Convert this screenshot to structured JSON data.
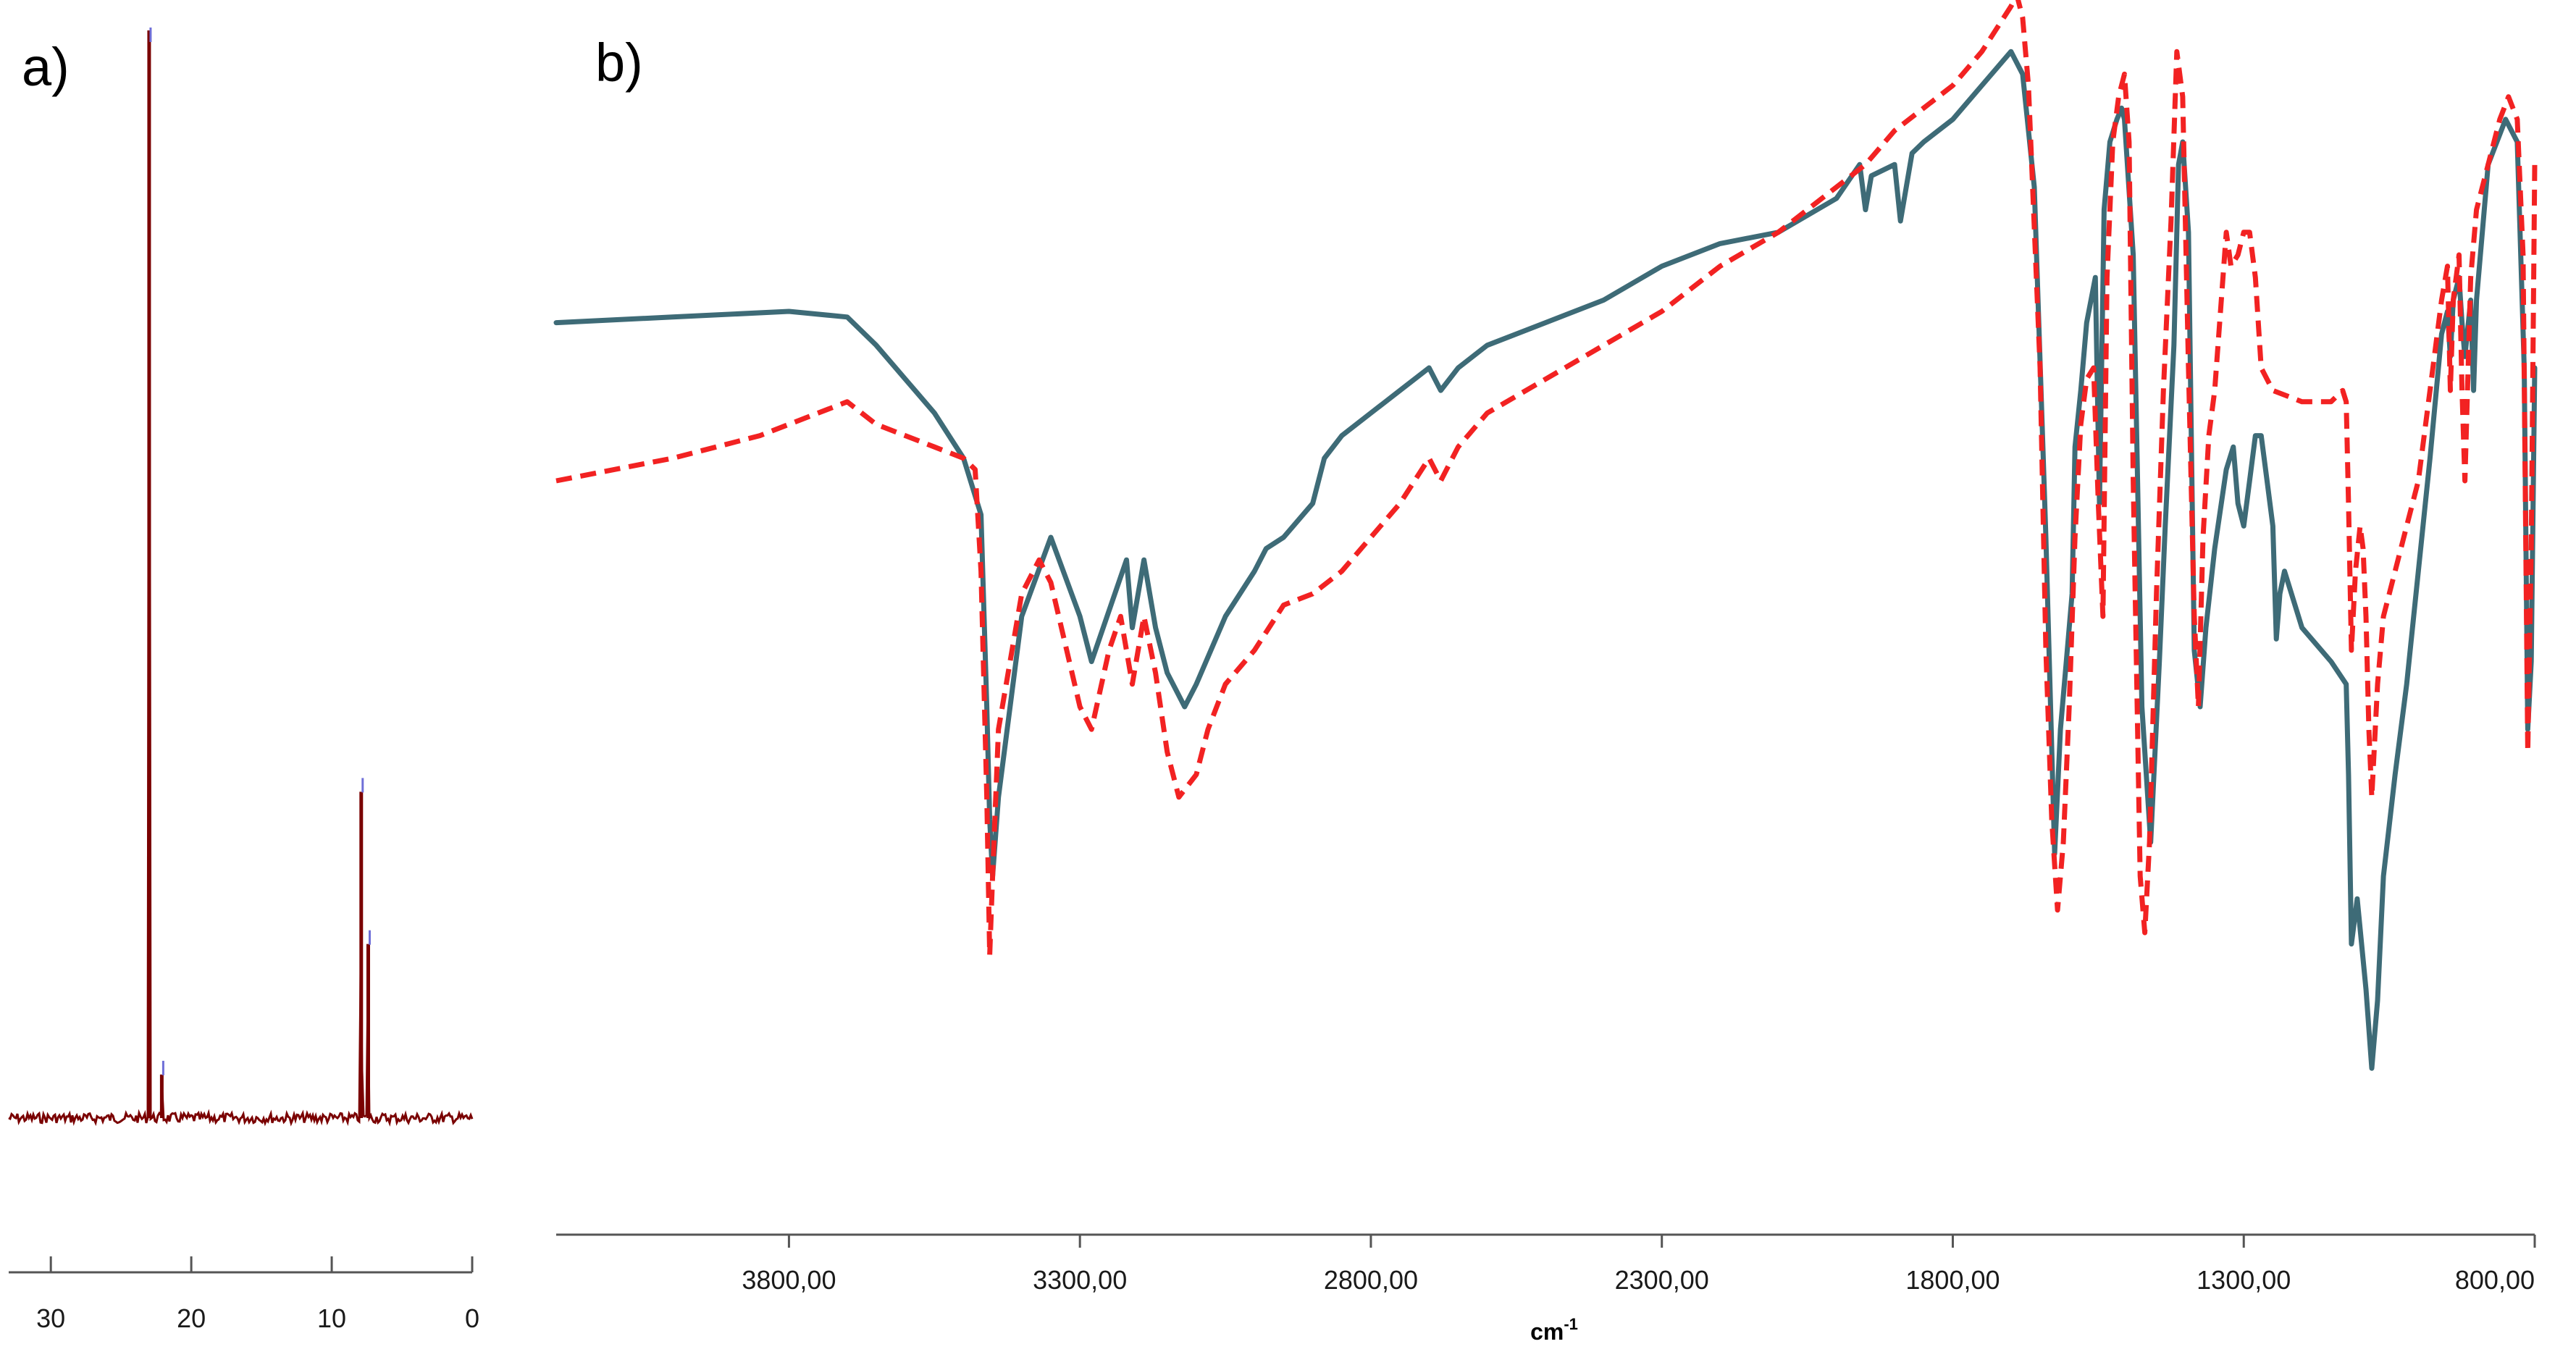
{
  "panel_a": {
    "label": "a)"
  },
  "panel_b": {
    "label": "b)"
  },
  "chart_data": [
    {
      "type": "line",
      "title": "",
      "xlabel": "",
      "ylabel": "",
      "xlim": [
        33,
        0
      ],
      "x_ticks": [
        30,
        20,
        10,
        0
      ],
      "x_tick_labels": [
        "30",
        "20",
        "10",
        "0"
      ],
      "grid": false,
      "series": [
        {
          "color": "#7a0000",
          "baseline": 0,
          "peaks": [
            {
              "x": 23.0,
              "height": 1.0
            },
            {
              "x": 22.1,
              "height": 0.04
            },
            {
              "x": 7.9,
              "height": 0.3
            },
            {
              "x": 7.4,
              "height": 0.16
            }
          ]
        }
      ],
      "peak_markers": [
        {
          "x": 23.0,
          "height": 1.0
        },
        {
          "x": 22.1,
          "height": 0.05
        },
        {
          "x": 7.9,
          "height": 0.31
        },
        {
          "x": 7.4,
          "height": 0.17
        }
      ],
      "marker_color": "#6f6fd8"
    },
    {
      "type": "line",
      "title": "",
      "xlabel": "cm",
      "xlabel_superscript": "-1",
      "ylabel": "",
      "xlim": [
        4200,
        800
      ],
      "ylim": [
        0,
        100
      ],
      "x_ticks": [
        3800,
        3300,
        2800,
        2300,
        1800,
        1300,
        800
      ],
      "x_tick_labels": [
        "3800,00",
        "3300,00",
        "2800,00",
        "2300,00",
        "1800,00",
        "1300,00",
        "800,00"
      ],
      "grid": false,
      "series": [
        {
          "color": "#3e6b77",
          "style": "solid",
          "points": [
            [
              4200,
              74
            ],
            [
              4000,
              74.5
            ],
            [
              3800,
              75
            ],
            [
              3700,
              74.5
            ],
            [
              3650,
              72
            ],
            [
              3600,
              69
            ],
            [
              3550,
              66
            ],
            [
              3500,
              62
            ],
            [
              3470,
              57
            ],
            [
              3460,
              40
            ],
            [
              3455,
              30
            ],
            [
              3450,
              25
            ],
            [
              3440,
              32
            ],
            [
              3400,
              48
            ],
            [
              3350,
              55
            ],
            [
              3300,
              48
            ],
            [
              3280,
              44
            ],
            [
              3240,
              50
            ],
            [
              3220,
              53
            ],
            [
              3210,
              47
            ],
            [
              3190,
              53
            ],
            [
              3170,
              47
            ],
            [
              3150,
              43
            ],
            [
              3120,
              40
            ],
            [
              3100,
              42
            ],
            [
              3050,
              48
            ],
            [
              3000,
              52
            ],
            [
              2980,
              54
            ],
            [
              2950,
              55
            ],
            [
              2900,
              58
            ],
            [
              2880,
              62
            ],
            [
              2850,
              64
            ],
            [
              2800,
              66
            ],
            [
              2750,
              68
            ],
            [
              2700,
              70
            ],
            [
              2680,
              68
            ],
            [
              2650,
              70
            ],
            [
              2600,
              72
            ],
            [
              2500,
              74
            ],
            [
              2400,
              76
            ],
            [
              2300,
              79
            ],
            [
              2200,
              81
            ],
            [
              2100,
              82
            ],
            [
              2000,
              85
            ],
            [
              1960,
              88
            ],
            [
              1950,
              84
            ],
            [
              1940,
              87
            ],
            [
              1900,
              88
            ],
            [
              1890,
              83
            ],
            [
              1870,
              89
            ],
            [
              1850,
              90
            ],
            [
              1800,
              92
            ],
            [
              1750,
              95
            ],
            [
              1700,
              98
            ],
            [
              1680,
              96
            ],
            [
              1660,
              86
            ],
            [
              1640,
              55
            ],
            [
              1625,
              27
            ],
            [
              1615,
              38
            ],
            [
              1605,
              44
            ],
            [
              1595,
              50
            ],
            [
              1590,
              63
            ],
            [
              1580,
              68
            ],
            [
              1570,
              74
            ],
            [
              1555,
              78
            ],
            [
              1548,
              58
            ],
            [
              1540,
              84
            ],
            [
              1530,
              90
            ],
            [
              1518,
              92
            ],
            [
              1510,
              93
            ],
            [
              1505,
              92
            ],
            [
              1490,
              80
            ],
            [
              1475,
              40
            ],
            [
              1460,
              28
            ],
            [
              1445,
              44
            ],
            [
              1435,
              56
            ],
            [
              1420,
              72
            ],
            [
              1412,
              88
            ],
            [
              1405,
              90
            ],
            [
              1395,
              82
            ],
            [
              1385,
              45
            ],
            [
              1375,
              40
            ],
            [
              1365,
              47
            ],
            [
              1350,
              54
            ],
            [
              1330,
              61
            ],
            [
              1318,
              63
            ],
            [
              1310,
              58
            ],
            [
              1300,
              56
            ],
            [
              1290,
              60
            ],
            [
              1280,
              64
            ],
            [
              1270,
              64
            ],
            [
              1260,
              60
            ],
            [
              1250,
              56
            ],
            [
              1244,
              46
            ],
            [
              1238,
              50
            ],
            [
              1230,
              52
            ],
            [
              1200,
              47
            ],
            [
              1150,
              44
            ],
            [
              1124,
              42
            ],
            [
              1120,
              34
            ],
            [
              1115,
              19
            ],
            [
              1105,
              23
            ],
            [
              1090,
              15
            ],
            [
              1080,
              8
            ],
            [
              1070,
              14
            ],
            [
              1060,
              25
            ],
            [
              1040,
              34
            ],
            [
              1020,
              42
            ],
            [
              1000,
              52
            ],
            [
              980,
              62
            ],
            [
              960,
              73
            ],
            [
              950,
              75
            ],
            [
              945,
              71
            ],
            [
              940,
              76
            ],
            [
              930,
              78
            ],
            [
              925,
              74
            ],
            [
              920,
              71
            ],
            [
              910,
              76
            ],
            [
              905,
              68
            ],
            [
              900,
              76
            ],
            [
              880,
              88
            ],
            [
              850,
              92
            ],
            [
              830,
              90
            ],
            [
              818,
              70
            ],
            [
              812,
              38
            ],
            [
              806,
              44
            ],
            [
              800,
              70
            ]
          ]
        },
        {
          "color": "#f22222",
          "style": "dashed",
          "points": [
            [
              4200,
              60
            ],
            [
              4000,
              62
            ],
            [
              3850,
              64
            ],
            [
              3800,
              65
            ],
            [
              3750,
              66
            ],
            [
              3700,
              67
            ],
            [
              3650,
              65
            ],
            [
              3600,
              64
            ],
            [
              3550,
              63
            ],
            [
              3500,
              62
            ],
            [
              3480,
              61
            ],
            [
              3470,
              52
            ],
            [
              3460,
              32
            ],
            [
              3455,
              18
            ],
            [
              3450,
              25
            ],
            [
              3440,
              38
            ],
            [
              3400,
              50
            ],
            [
              3370,
              53
            ],
            [
              3350,
              51
            ],
            [
              3300,
              40
            ],
            [
              3280,
              38
            ],
            [
              3250,
              45
            ],
            [
              3230,
              48
            ],
            [
              3210,
              42
            ],
            [
              3190,
              48
            ],
            [
              3170,
              43
            ],
            [
              3150,
              36
            ],
            [
              3130,
              32
            ],
            [
              3100,
              34
            ],
            [
              3080,
              38
            ],
            [
              3050,
              42
            ],
            [
              3000,
              45
            ],
            [
              2950,
              49
            ],
            [
              2900,
              50
            ],
            [
              2850,
              52
            ],
            [
              2800,
              55
            ],
            [
              2750,
              58
            ],
            [
              2700,
              62
            ],
            [
              2680,
              60
            ],
            [
              2650,
              63
            ],
            [
              2600,
              66
            ],
            [
              2500,
              69
            ],
            [
              2400,
              72
            ],
            [
              2300,
              75
            ],
            [
              2200,
              79
            ],
            [
              2100,
              82
            ],
            [
              2000,
              86
            ],
            [
              1950,
              88
            ],
            [
              1900,
              91
            ],
            [
              1850,
              93
            ],
            [
              1800,
              95
            ],
            [
              1750,
              98
            ],
            [
              1700,
              102
            ],
            [
              1690,
              103
            ],
            [
              1680,
              101
            ],
            [
              1670,
              95
            ],
            [
              1650,
              70
            ],
            [
              1640,
              45
            ],
            [
              1630,
              30
            ],
            [
              1620,
              22
            ],
            [
              1610,
              28
            ],
            [
              1600,
              40
            ],
            [
              1590,
              55
            ],
            [
              1580,
              65
            ],
            [
              1570,
              69
            ],
            [
              1558,
              70
            ],
            [
              1550,
              58
            ],
            [
              1542,
              48
            ],
            [
              1535,
              78
            ],
            [
              1525,
              90
            ],
            [
              1515,
              94
            ],
            [
              1505,
              96
            ],
            [
              1497,
              90
            ],
            [
              1490,
              60
            ],
            [
              1478,
              25
            ],
            [
              1470,
              20
            ],
            [
              1462,
              28
            ],
            [
              1450,
              50
            ],
            [
              1438,
              68
            ],
            [
              1425,
              83
            ],
            [
              1415,
              98
            ],
            [
              1405,
              94
            ],
            [
              1395,
              70
            ],
            [
              1385,
              48
            ],
            [
              1378,
              40
            ],
            [
              1370,
              55
            ],
            [
              1360,
              64
            ],
            [
              1350,
              68
            ],
            [
              1340,
              75
            ],
            [
              1330,
              82
            ],
            [
              1322,
              79
            ],
            [
              1310,
              80
            ],
            [
              1300,
              82
            ],
            [
              1290,
              82
            ],
            [
              1280,
              78
            ],
            [
              1270,
              70
            ],
            [
              1250,
              68
            ],
            [
              1200,
              67
            ],
            [
              1150,
              67
            ],
            [
              1130,
              68
            ],
            [
              1124,
              67
            ],
            [
              1120,
              58
            ],
            [
              1115,
              45
            ],
            [
              1108,
              52
            ],
            [
              1100,
              56
            ],
            [
              1095,
              54
            ],
            [
              1090,
              48
            ],
            [
              1085,
              38
            ],
            [
              1080,
              32
            ],
            [
              1070,
              42
            ],
            [
              1060,
              48
            ],
            [
              1040,
              52
            ],
            [
              1020,
              56
            ],
            [
              1000,
              60
            ],
            [
              980,
              68
            ],
            [
              960,
              76
            ],
            [
              950,
              79
            ],
            [
              945,
              68
            ],
            [
              940,
              76
            ],
            [
              930,
              80
            ],
            [
              925,
              68
            ],
            [
              920,
              60
            ],
            [
              910,
              78
            ],
            [
              900,
              84
            ],
            [
              880,
              88
            ],
            [
              860,
              92
            ],
            [
              845,
              94
            ],
            [
              830,
              92
            ],
            [
              820,
              80
            ],
            [
              812,
              36
            ],
            [
              806,
              54
            ],
            [
              800,
              88
            ]
          ]
        }
      ]
    }
  ]
}
